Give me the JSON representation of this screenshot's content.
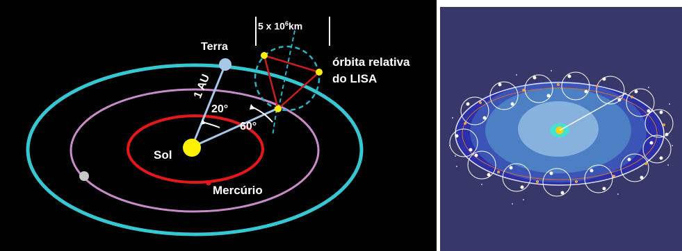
{
  "labels": {
    "earth": "Terra",
    "sun": "Sol",
    "mercury": "Mercúrio",
    "distance": "1 AU",
    "angle_20": "20°",
    "angle_60": "60°",
    "scale_prefix": "5 x 10",
    "scale_exp": "6",
    "scale_unit": "km",
    "orbit_line1": "órbita relativa",
    "orbit_line2": "do LISA"
  },
  "colors": {
    "outer_orbit": "#35c7d2",
    "middle_orbit": "#c98bc9",
    "inner_orbit": "#e4171a",
    "sun": "#fff200",
    "earth": "#a8c8ea",
    "triangle": "#cc1d1d",
    "lisa_circle": "#2ab5c7",
    "right_background": "#37376a"
  }
}
